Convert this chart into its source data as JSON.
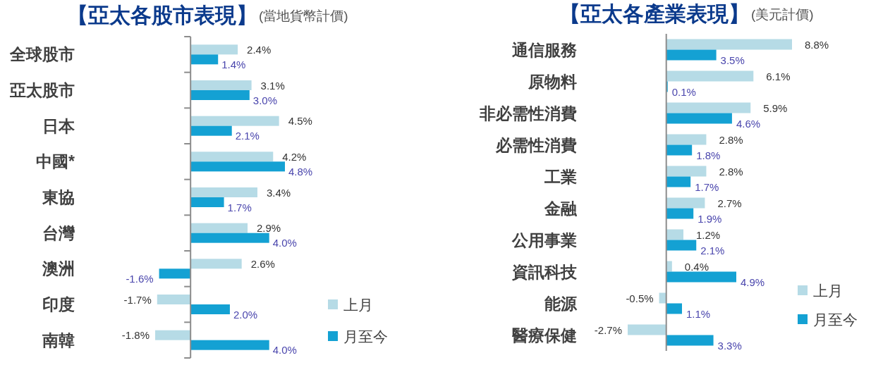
{
  "chart_data": [
    {
      "type": "bar",
      "orientation": "horizontal",
      "title": "【亞太各股市表現】",
      "subtitle": "(當地貨幣計價)",
      "categories": [
        "全球股市",
        "亞太股市",
        "日本",
        "中國*",
        "東協",
        "台灣",
        "澳洲",
        "印度",
        "南韓"
      ],
      "series": [
        {
          "name": "上月",
          "color": "#b6dbe6",
          "values": [
            2.4,
            3.1,
            4.5,
            4.2,
            3.4,
            2.9,
            2.6,
            -1.7,
            -1.8
          ],
          "value_labels": [
            "2.4%",
            "3.1%",
            "4.5%",
            "4.2%",
            "3.4%",
            "2.9%",
            "2.6%",
            "-1.7%",
            "-1.8%"
          ]
        },
        {
          "name": "月至今",
          "color": "#14a1d3",
          "values": [
            1.4,
            3.0,
            2.1,
            4.8,
            1.7,
            4.0,
            -1.6,
            2.0,
            4.0
          ],
          "value_labels": [
            "1.4%",
            "3.0%",
            "2.1%",
            "4.8%",
            "1.7%",
            "4.0%",
            "-1.6%",
            "2.0%",
            "4.0%"
          ]
        }
      ],
      "legend": "bottom right",
      "tick_labels": "y"
    },
    {
      "type": "bar",
      "orientation": "horizontal",
      "title": "【亞太各產業表現】",
      "subtitle": "(美元計價)",
      "categories": [
        "通信服務",
        "原物料",
        "非必需性消費",
        "必需性消費",
        "工業",
        "金融",
        "公用事業",
        "資訊科技",
        "能源",
        "醫療保健"
      ],
      "series": [
        {
          "name": "上月",
          "color": "#b6dbe6",
          "values": [
            8.8,
            6.1,
            5.9,
            2.8,
            2.8,
            2.7,
            1.2,
            0.4,
            -0.5,
            -2.7
          ],
          "value_labels": [
            "8.8%",
            "6.1%",
            "5.9%",
            "2.8%",
            "2.8%",
            "2.7%",
            "1.2%",
            "0.4%",
            "-0.5%",
            "-2.7%"
          ]
        },
        {
          "name": "月至今",
          "color": "#14a1d3",
          "values": [
            3.5,
            0.1,
            4.6,
            1.8,
            1.7,
            1.9,
            2.1,
            4.9,
            1.1,
            3.3
          ],
          "value_labels": [
            "3.5%",
            "0.1%",
            "4.6%",
            "1.8%",
            "1.7%",
            "1.9%",
            "2.1%",
            "4.9%",
            "1.1%",
            "3.3%"
          ]
        }
      ],
      "legend": "bottom right",
      "tick_labels": "y"
    }
  ]
}
